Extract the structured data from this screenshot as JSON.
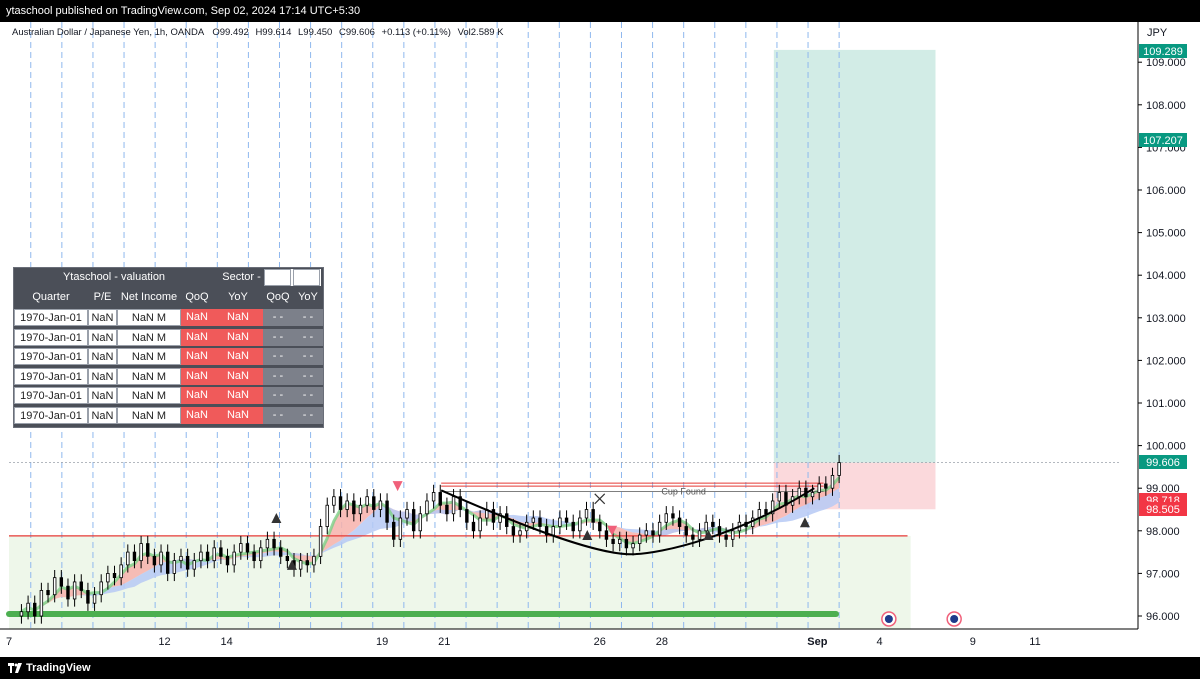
{
  "header": {
    "publisher_line": "ytaschool published on TradingView.com, Sep 02, 2024 17:14 UTC+5:30"
  },
  "legend": {
    "symbol": "Australian Dollar / Japanese Yen, 1h, OANDA",
    "open": "O99.492",
    "high": "H99.614",
    "low": "L99.450",
    "close": "C99.606",
    "change": "+0.113 (+0.11%)",
    "volume": "Vol2.589 K"
  },
  "footer": {
    "brand": "TradingView"
  },
  "colors": {
    "profit_zone": "#d2ece6",
    "loss_zone": "#fbd9dc",
    "support_zone": "#eef7ea",
    "resistance_line": "#e53935",
    "green_bar": "#4caf50",
    "candle": "#000000",
    "grid": "#8fb8ee",
    "badge_teal": "#089981",
    "badge_red": "#f23645",
    "badge_gray": "#787b86"
  },
  "valuation_table": {
    "title": "Ytaschool - valuation",
    "sector_label": "Sector -",
    "headers": [
      "Quarter",
      "P/E",
      "Net Income",
      "QoQ",
      "YoY",
      "QoQ",
      "YoY"
    ],
    "rows": [
      [
        "1970-Jan-01",
        "NaN",
        "NaN M",
        "NaN",
        "NaN",
        "- -",
        "- -"
      ],
      [
        "1970-Jan-01",
        "NaN",
        "NaN M",
        "NaN",
        "NaN",
        "- -",
        "- -"
      ],
      [
        "1970-Jan-01",
        "NaN",
        "NaN M",
        "NaN",
        "NaN",
        "- -",
        "- -"
      ],
      [
        "1970-Jan-01",
        "NaN",
        "NaN M",
        "NaN",
        "NaN",
        "- -",
        "- -"
      ],
      [
        "1970-Jan-01",
        "NaN",
        "NaN M",
        "NaN",
        "NaN",
        "- -",
        "- -"
      ],
      [
        "1970-Jan-01",
        "NaN",
        "NaN M",
        "NaN",
        "NaN",
        "- -",
        "- -"
      ]
    ]
  },
  "chart_data": {
    "type": "candlestick",
    "symbol": "AUDJPY",
    "timeframe": "1h",
    "currency": "JPY",
    "y_ticks": [
      96,
      97,
      98,
      99,
      100,
      101,
      102,
      103,
      104,
      105,
      106,
      107,
      108,
      109
    ],
    "x_tick_labels": [
      {
        "label": "7",
        "day": 7
      },
      {
        "label": "12",
        "day": 12
      },
      {
        "label": "14",
        "day": 14
      },
      {
        "label": "19",
        "day": 19
      },
      {
        "label": "21",
        "day": 21
      },
      {
        "label": "26",
        "day": 26
      },
      {
        "label": "28",
        "day": 28
      },
      {
        "label": "Sep",
        "day": 33
      },
      {
        "label": "4",
        "day": 35
      },
      {
        "label": "9",
        "day": 38
      },
      {
        "label": "11",
        "day": 40
      }
    ],
    "price_badges": [
      {
        "label": "109.289",
        "value": 109.289,
        "color": "teal"
      },
      {
        "label": "107.207",
        "value": 107.207,
        "color": "teal"
      },
      {
        "label": "99.606",
        "value": 99.606,
        "color": "teal"
      },
      {
        "label": "98.718",
        "value": 98.718,
        "color": "red"
      },
      {
        "label": "98.505",
        "value": 98.505,
        "color": "red"
      }
    ],
    "trade_setup": {
      "entry": 99.6,
      "target": 109.289,
      "stop": 98.505,
      "start_day": 31.6,
      "end_day": 36.8
    },
    "support_zone": {
      "top": 97.88,
      "start_day": 7,
      "end_day": 36
    },
    "resistance_lines": [
      99.12,
      99.05
    ],
    "annotations": [
      {
        "text": "Cup Found",
        "day": 28.7,
        "value": 98.95
      }
    ],
    "candles_close": [
      96.1,
      96.3,
      96.0,
      96.6,
      96.5,
      96.9,
      96.7,
      96.4,
      96.8,
      96.6,
      96.3,
      96.5,
      96.8,
      97.0,
      96.9,
      97.2,
      97.5,
      97.3,
      97.7,
      97.4,
      97.2,
      97.5,
      97.0,
      97.3,
      97.4,
      97.1,
      97.3,
      97.5,
      97.3,
      97.6,
      97.4,
      97.2,
      97.5,
      97.7,
      97.5,
      97.3,
      97.6,
      97.8,
      97.6,
      97.4,
      97.3,
      97.1,
      97.3,
      97.2,
      97.4,
      98.1,
      98.6,
      98.8,
      98.5,
      98.7,
      98.4,
      98.6,
      98.8,
      98.5,
      98.7,
      98.2,
      97.8,
      98.3,
      98.5,
      98.0,
      98.4,
      98.7,
      98.9,
      98.6,
      98.4,
      98.8,
      98.5,
      98.2,
      98.0,
      98.3,
      98.5,
      98.2,
      98.4,
      98.1,
      97.9,
      98.0,
      98.2,
      98.3,
      98.1,
      97.9,
      98.1,
      98.3,
      98.2,
      98.0,
      98.3,
      98.5,
      98.2,
      98.0,
      97.8,
      97.7,
      97.8,
      97.6,
      97.7,
      97.9,
      98.0,
      97.9,
      98.2,
      98.4,
      98.3,
      98.1,
      97.9,
      97.8,
      98.0,
      98.2,
      98.1,
      97.9,
      97.8,
      98.0,
      98.2,
      98.1,
      98.3,
      98.5,
      98.4,
      98.7,
      98.9,
      98.6,
      98.8,
      99.0,
      98.8,
      98.9,
      99.1,
      99.0,
      99.3,
      99.6
    ],
    "cup_curve": [
      {
        "day": 20.9,
        "value": 98.95
      },
      {
        "day": 24.0,
        "value": 97.95
      },
      {
        "day": 27.0,
        "value": 97.45
      },
      {
        "day": 30.5,
        "value": 97.9
      },
      {
        "day": 32.9,
        "value": 99.0
      }
    ]
  }
}
